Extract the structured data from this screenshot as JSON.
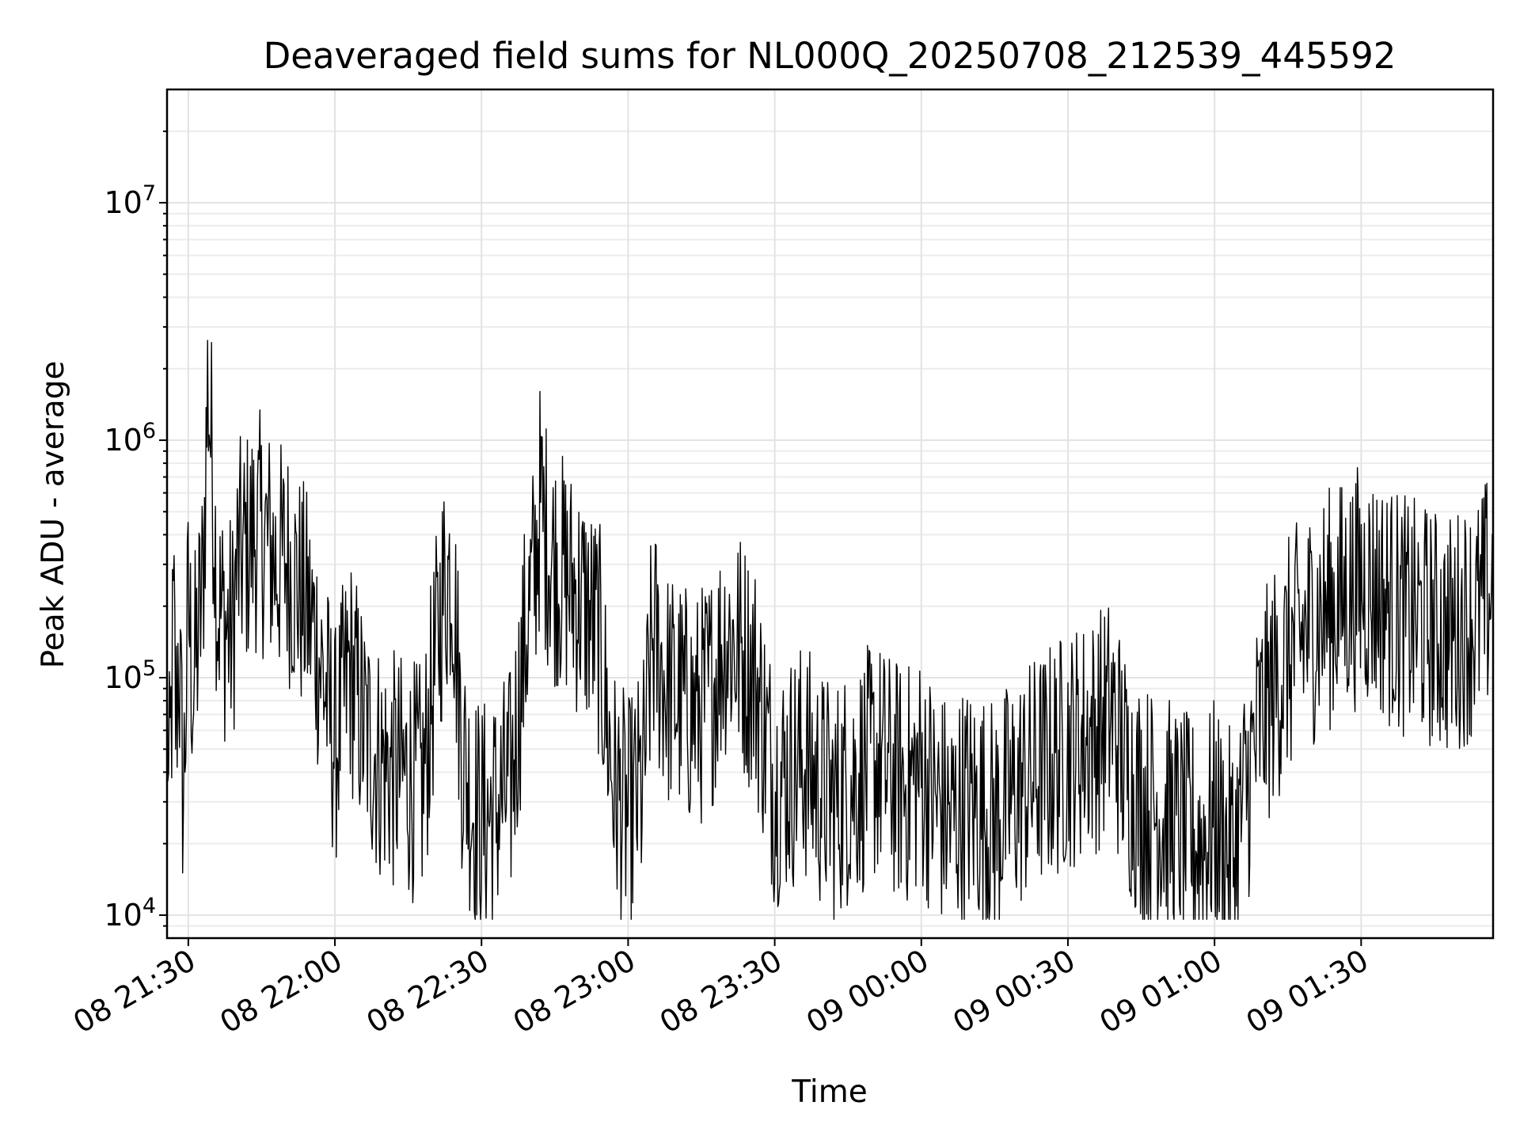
{
  "chart_data": {
    "type": "line",
    "title": "Deaveraged field sums for NL000Q_20250708_212539_445592",
    "xlabel": "Time",
    "ylabel": "Peak ADU - average",
    "yscale": "log",
    "ylim": [
      8000,
      30000000
    ],
    "xlim": [
      "2025-07-08 21:25:39",
      "2025-07-09 01:57:00"
    ],
    "grid": true,
    "x_ticks": [
      {
        "value": "2025-07-08 21:30",
        "label": "08 21:30"
      },
      {
        "value": "2025-07-08 22:00",
        "label": "08 22:00"
      },
      {
        "value": "2025-07-08 22:30",
        "label": "08 22:30"
      },
      {
        "value": "2025-07-08 23:00",
        "label": "08 23:00"
      },
      {
        "value": "2025-07-08 23:30",
        "label": "08 23:30"
      },
      {
        "value": "2025-07-09 00:00",
        "label": "09 00:00"
      },
      {
        "value": "2025-07-09 00:30",
        "label": "09 00:30"
      },
      {
        "value": "2025-07-09 01:00",
        "label": "09 01:00"
      },
      {
        "value": "2025-07-09 01:30",
        "label": "09 01:30"
      }
    ],
    "y_ticks": [
      {
        "value": 10000,
        "base": "10",
        "exp": "4"
      },
      {
        "value": 100000,
        "base": "10",
        "exp": "5"
      },
      {
        "value": 1000000,
        "base": "10",
        "exp": "6"
      },
      {
        "value": 10000000,
        "base": "10",
        "exp": "7"
      }
    ],
    "series": [
      {
        "color": "#000000",
        "x": [
          "2025-07-08 21:25:39",
          "2025-07-08 21:26:00",
          "2025-07-08 21:27:00",
          "2025-07-08 21:27:30",
          "2025-07-08 21:28:00",
          "2025-07-08 21:29:00",
          "2025-07-08 21:30:00",
          "2025-07-08 21:31:00",
          "2025-07-08 21:32:00",
          "2025-07-08 21:33:00",
          "2025-07-08 21:34:00",
          "2025-07-08 21:35:00",
          "2025-07-08 21:36:00",
          "2025-07-08 21:37:00",
          "2025-07-08 21:38:00",
          "2025-07-08 21:39:00",
          "2025-07-08 21:40:00",
          "2025-07-08 21:42:00",
          "2025-07-08 21:44:00",
          "2025-07-08 21:46:00",
          "2025-07-08 21:48:00",
          "2025-07-08 21:50:00",
          "2025-07-08 21:52:00",
          "2025-07-08 21:54:00",
          "2025-07-08 21:56:00",
          "2025-07-08 21:58:00",
          "2025-07-08 22:00:00",
          "2025-07-08 22:03:00",
          "2025-07-08 22:06:00",
          "2025-07-08 22:09:00",
          "2025-07-08 22:12:00",
          "2025-07-08 22:15:00",
          "2025-07-08 22:18:00",
          "2025-07-08 22:20:00",
          "2025-07-08 22:22:00",
          "2025-07-08 22:24:00",
          "2025-07-08 22:26:00",
          "2025-07-08 22:28:00",
          "2025-07-08 22:30:00",
          "2025-07-08 22:33:00",
          "2025-07-08 22:36:00",
          "2025-07-08 22:39:00",
          "2025-07-08 22:41:00",
          "2025-07-08 22:42:00",
          "2025-07-08 22:43:00",
          "2025-07-08 22:45:00",
          "2025-07-08 22:48:00",
          "2025-07-08 22:51:00",
          "2025-07-08 22:54:00",
          "2025-07-08 22:57:00",
          "2025-07-08 23:00:00",
          "2025-07-08 23:03:00",
          "2025-07-08 23:05:00",
          "2025-07-08 23:08:00",
          "2025-07-08 23:11:00",
          "2025-07-08 23:14:00",
          "2025-07-08 23:17:00",
          "2025-07-08 23:20:00",
          "2025-07-08 23:23:00",
          "2025-07-08 23:26:00",
          "2025-07-08 23:30:00",
          "2025-07-08 23:33:00",
          "2025-07-08 23:36:00",
          "2025-07-08 23:39:00",
          "2025-07-08 23:42:00",
          "2025-07-08 23:45:00",
          "2025-07-08 23:48:00",
          "2025-07-08 23:51:00",
          "2025-07-08 23:54:00",
          "2025-07-08 23:57:00",
          "2025-07-09 00:00:00",
          "2025-07-09 00:03:00",
          "2025-07-09 00:06:00",
          "2025-07-09 00:09:00",
          "2025-07-09 00:12:00",
          "2025-07-09 00:15:00",
          "2025-07-09 00:18:00",
          "2025-07-09 00:21:00",
          "2025-07-09 00:24:00",
          "2025-07-09 00:27:00",
          "2025-07-09 00:30:00",
          "2025-07-09 00:33:00",
          "2025-07-09 00:36:00",
          "2025-07-09 00:39:00",
          "2025-07-09 00:42:00",
          "2025-07-09 00:45:00",
          "2025-07-09 00:48:00",
          "2025-07-09 00:51:00",
          "2025-07-09 00:54:00",
          "2025-07-09 00:57:00",
          "2025-07-09 01:00:00",
          "2025-07-09 01:02:00",
          "2025-07-09 01:04:00",
          "2025-07-09 01:06:00",
          "2025-07-09 01:09:00",
          "2025-07-09 01:12:00",
          "2025-07-09 01:15:00",
          "2025-07-09 01:18:00",
          "2025-07-09 01:21:00",
          "2025-07-09 01:24:00",
          "2025-07-09 01:27:00",
          "2025-07-09 01:30:00",
          "2025-07-09 01:33:00",
          "2025-07-09 01:36:00",
          "2025-07-09 01:39:00",
          "2025-07-09 01:42:00",
          "2025-07-09 01:45:00",
          "2025-07-09 01:48:00",
          "2025-07-09 01:51:00",
          "2025-07-09 01:54:00",
          "2025-07-09 01:57:00"
        ],
        "y": [
          120000,
          25000,
          180000,
          60000,
          140000,
          30000,
          200000,
          90000,
          150000,
          250000,
          1800000,
          700000,
          200000,
          180000,
          160000,
          150000,
          300000,
          350000,
          420000,
          380000,
          300000,
          320000,
          250000,
          200000,
          150000,
          90000,
          50000,
          110000,
          60000,
          45000,
          40000,
          38000,
          35000,
          90000,
          220000,
          300000,
          50000,
          30000,
          25000,
          28000,
          35000,
          150000,
          300000,
          550000,
          400000,
          300000,
          250000,
          200000,
          150000,
          35000,
          25000,
          35000,
          150000,
          90000,
          80000,
          70000,
          90000,
          150000,
          130000,
          100000,
          35000,
          40000,
          45000,
          35000,
          30000,
          35000,
          40000,
          45000,
          38000,
          35000,
          40000,
          30000,
          25000,
          30000,
          28000,
          25000,
          30000,
          35000,
          40000,
          45000,
          50000,
          55000,
          60000,
          70000,
          40000,
          30000,
          28000,
          25000,
          22000,
          20000,
          25000,
          20000,
          18000,
          30000,
          60000,
          90000,
          120000,
          150000,
          180000,
          200000,
          220000,
          250000,
          230000,
          200000,
          180000,
          170000,
          160000,
          150000,
          170000,
          180000,
          250000
        ]
      }
    ]
  }
}
